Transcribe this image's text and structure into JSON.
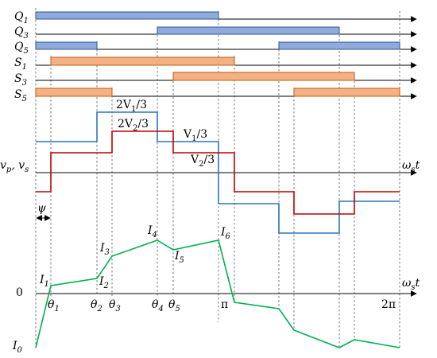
{
  "switches": {
    "q1": {
      "name": "Q",
      "sub": "1"
    },
    "q3": {
      "name": "Q",
      "sub": "3"
    },
    "q5": {
      "name": "Q",
      "sub": "5"
    },
    "s1": {
      "name": "S",
      "sub": "1"
    },
    "s3": {
      "name": "S",
      "sub": "3"
    },
    "s5": {
      "name": "S",
      "sub": "5"
    }
  },
  "waveform_labels": {
    "two_v1": {
      "pre": "2V",
      "sub": "1",
      "post": "/3"
    },
    "two_v2": {
      "pre": "2V",
      "sub": "2",
      "post": "/3"
    },
    "v1": {
      "pre": "V",
      "sub": "1",
      "post": "/3"
    },
    "v2": {
      "pre": "V",
      "sub": "2",
      "post": "/3"
    },
    "vp_vs": {
      "a": "v",
      "a_sub": "p",
      "sep": ", ",
      "b": "v",
      "b_sub": "s"
    },
    "psi": "ψ"
  },
  "axis_labels": {
    "omega_t_upper": {
      "pre": "ω",
      "sub": "s",
      "post": "t"
    },
    "omega_t_lower": {
      "pre": "ω",
      "sub": "s",
      "post": "t"
    },
    "zero": "0"
  },
  "angles": {
    "theta1": {
      "pre": "θ",
      "sub": "1"
    },
    "theta2": {
      "pre": "θ",
      "sub": "2"
    },
    "theta3": {
      "pre": "θ",
      "sub": "3"
    },
    "theta4": {
      "pre": "θ",
      "sub": "4"
    },
    "theta5": {
      "pre": "θ",
      "sub": "5"
    },
    "pi": "π",
    "two_pi": "2π"
  },
  "currents": {
    "i0": {
      "pre": "I",
      "sub": "0"
    },
    "i1": {
      "pre": "I",
      "sub": "1"
    },
    "i2": {
      "pre": "I",
      "sub": "2"
    },
    "i3": {
      "pre": "I",
      "sub": "3"
    },
    "i4": {
      "pre": "I",
      "sub": "4"
    },
    "i5": {
      "pre": "I",
      "sub": "5"
    },
    "i6": {
      "pre": "I",
      "sub": "6"
    }
  },
  "colors": {
    "q_bar_fill": "#8faadc",
    "s_bar_fill": "#f4b183",
    "vp_line": "#2e75b6",
    "vs_line": "#c00000",
    "current_line": "#00b050"
  }
}
